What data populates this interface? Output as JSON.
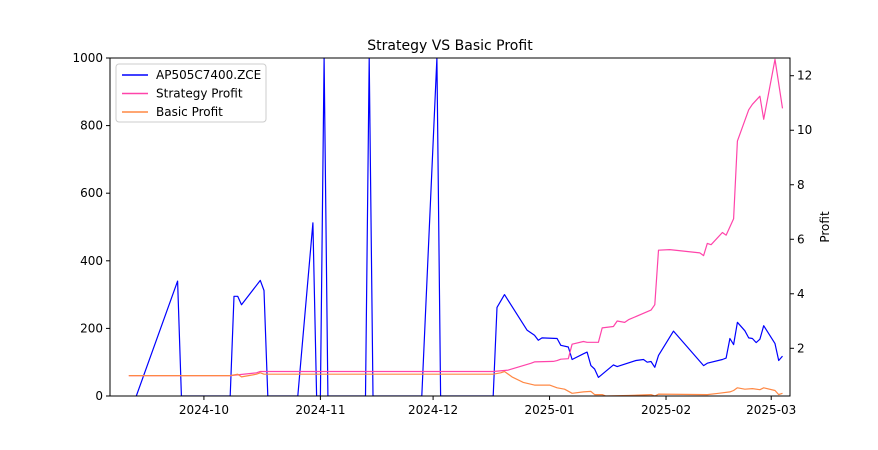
{
  "chart_data": {
    "type": "line",
    "title": "Strategy VS Basic Profit",
    "xlabel": "",
    "ylabel_left": "",
    "ylabel_right": "Profit",
    "x_ticks": [
      "2024-10",
      "2024-11",
      "2024-12",
      "2025-01",
      "2025-02",
      "2025-03"
    ],
    "y_left_ticks": [
      "0",
      "200",
      "400",
      "600",
      "800",
      "1000"
    ],
    "y_right_ticks": [
      "2",
      "4",
      "6",
      "8",
      "10",
      "12"
    ],
    "y_left_lim": [
      0,
      1000
    ],
    "y_right_lim": [
      0.25,
      12.65
    ],
    "x_lim": [
      "2024-09-06",
      "2025-03-06"
    ],
    "legend_position": "upper-left",
    "grid": false,
    "series": [
      {
        "name": "AP505C7400.ZCE",
        "axis": "left",
        "color": "#0000ff",
        "points": [
          [
            "2024-09-13",
            0
          ],
          [
            "2024-09-24",
            340
          ],
          [
            "2024-09-25",
            0
          ],
          [
            "2024-10-08",
            0
          ],
          [
            "2024-10-09",
            295
          ],
          [
            "2024-10-10",
            295
          ],
          [
            "2024-10-11",
            270
          ],
          [
            "2024-10-16",
            342
          ],
          [
            "2024-10-17",
            312
          ],
          [
            "2024-10-18",
            0
          ],
          [
            "2024-10-26",
            0
          ],
          [
            "2024-10-30",
            512
          ],
          [
            "2024-10-31",
            0
          ],
          [
            "2024-11-01",
            0
          ],
          [
            "2024-11-02",
            1000
          ],
          [
            "2024-11-03",
            0
          ],
          [
            "2024-11-13",
            0
          ],
          [
            "2024-11-14",
            1000
          ],
          [
            "2024-11-15",
            0
          ],
          [
            "2024-11-28",
            0
          ],
          [
            "2024-12-02",
            1000
          ],
          [
            "2024-12-03",
            0
          ],
          [
            "2024-12-17",
            0
          ],
          [
            "2024-12-18",
            262
          ],
          [
            "2024-12-20",
            300
          ],
          [
            "2024-12-26",
            195
          ],
          [
            "2024-12-28",
            180
          ],
          [
            "2024-12-29",
            165
          ],
          [
            "2024-12-30",
            172
          ],
          [
            "2025-01-03",
            170
          ],
          [
            "2025-01-04",
            150
          ],
          [
            "2025-01-06",
            145
          ],
          [
            "2025-01-07",
            108
          ],
          [
            "2025-01-10",
            125
          ],
          [
            "2025-01-11",
            130
          ],
          [
            "2025-01-12",
            90
          ],
          [
            "2025-01-13",
            80
          ],
          [
            "2025-01-14",
            55
          ],
          [
            "2025-01-18",
            92
          ],
          [
            "2025-01-19",
            87
          ],
          [
            "2025-01-24",
            105
          ],
          [
            "2025-01-26",
            108
          ],
          [
            "2025-01-27",
            100
          ],
          [
            "2025-01-28",
            102
          ],
          [
            "2025-01-29",
            85
          ],
          [
            "2025-01-30",
            120
          ],
          [
            "2025-02-03",
            192
          ],
          [
            "2025-02-11",
            90
          ],
          [
            "2025-02-12",
            97
          ],
          [
            "2025-02-16",
            108
          ],
          [
            "2025-02-17",
            112
          ],
          [
            "2025-02-18",
            170
          ],
          [
            "2025-02-19",
            152
          ],
          [
            "2025-02-20",
            218
          ],
          [
            "2025-02-22",
            193
          ],
          [
            "2025-02-23",
            172
          ],
          [
            "2025-02-24",
            170
          ],
          [
            "2025-02-25",
            158
          ],
          [
            "2025-02-26",
            168
          ],
          [
            "2025-02-27",
            208
          ],
          [
            "2025-03-02",
            155
          ],
          [
            "2025-03-03",
            105
          ],
          [
            "2025-03-04",
            118
          ]
        ]
      },
      {
        "name": "Strategy Profit",
        "axis": "right",
        "color": "#ff44aa",
        "points": [
          [
            "2024-09-11",
            1.0
          ],
          [
            "2024-10-08",
            1.0
          ],
          [
            "2024-10-15",
            1.1
          ],
          [
            "2024-10-16",
            1.15
          ],
          [
            "2024-12-17",
            1.15
          ],
          [
            "2024-12-21",
            1.2
          ],
          [
            "2024-12-27",
            1.45
          ],
          [
            "2024-12-28",
            1.5
          ],
          [
            "2025-01-02",
            1.52
          ],
          [
            "2025-01-03",
            1.55
          ],
          [
            "2025-01-04",
            1.6
          ],
          [
            "2025-01-06",
            1.62
          ],
          [
            "2025-01-07",
            2.15
          ],
          [
            "2025-01-10",
            2.25
          ],
          [
            "2025-01-11",
            2.22
          ],
          [
            "2025-01-14",
            2.22
          ],
          [
            "2025-01-15",
            2.75
          ],
          [
            "2025-01-18",
            2.8
          ],
          [
            "2025-01-19",
            3.0
          ],
          [
            "2025-01-21",
            2.95
          ],
          [
            "2025-01-22",
            3.05
          ],
          [
            "2025-01-28",
            3.4
          ],
          [
            "2025-01-29",
            3.6
          ],
          [
            "2025-01-30",
            5.6
          ],
          [
            "2025-02-02",
            5.62
          ],
          [
            "2025-02-10",
            5.5
          ],
          [
            "2025-02-11",
            5.4
          ],
          [
            "2025-02-12",
            5.85
          ],
          [
            "2025-02-13",
            5.8
          ],
          [
            "2025-02-16",
            6.25
          ],
          [
            "2025-02-17",
            6.15
          ],
          [
            "2025-02-19",
            6.75
          ],
          [
            "2025-02-20",
            9.6
          ],
          [
            "2025-02-23",
            10.75
          ],
          [
            "2025-02-24",
            10.95
          ],
          [
            "2025-02-26",
            11.25
          ],
          [
            "2025-02-27",
            10.4
          ],
          [
            "2025-03-02",
            12.6
          ],
          [
            "2025-03-04",
            10.8
          ]
        ]
      },
      {
        "name": "Basic Profit",
        "axis": "right",
        "color": "#ff8844",
        "points": [
          [
            "2024-09-11",
            1.0
          ],
          [
            "2024-10-08",
            1.0
          ],
          [
            "2024-10-10",
            1.05
          ],
          [
            "2024-10-11",
            0.95
          ],
          [
            "2024-10-15",
            1.05
          ],
          [
            "2024-10-16",
            1.1
          ],
          [
            "2024-10-17",
            1.05
          ],
          [
            "2024-12-17",
            1.05
          ],
          [
            "2024-12-19",
            1.1
          ],
          [
            "2024-12-20",
            1.15
          ],
          [
            "2024-12-22",
            0.95
          ],
          [
            "2024-12-25",
            0.75
          ],
          [
            "2024-12-28",
            0.65
          ],
          [
            "2025-01-01",
            0.65
          ],
          [
            "2025-01-03",
            0.55
          ],
          [
            "2025-01-05",
            0.5
          ],
          [
            "2025-01-07",
            0.35
          ],
          [
            "2025-01-10",
            0.4
          ],
          [
            "2025-01-12",
            0.42
          ],
          [
            "2025-01-13",
            0.3
          ],
          [
            "2025-01-15",
            0.3
          ],
          [
            "2025-01-16",
            0.25
          ],
          [
            "2025-01-22",
            0.27
          ],
          [
            "2025-01-28",
            0.3
          ],
          [
            "2025-01-29",
            0.25
          ],
          [
            "2025-01-30",
            0.32
          ],
          [
            "2025-02-12",
            0.3
          ],
          [
            "2025-02-15",
            0.35
          ],
          [
            "2025-02-18",
            0.4
          ],
          [
            "2025-02-19",
            0.45
          ],
          [
            "2025-02-20",
            0.55
          ],
          [
            "2025-02-22",
            0.5
          ],
          [
            "2025-02-24",
            0.52
          ],
          [
            "2025-02-26",
            0.48
          ],
          [
            "2025-02-27",
            0.55
          ],
          [
            "2025-03-02",
            0.45
          ],
          [
            "2025-03-03",
            0.3
          ],
          [
            "2025-03-04",
            0.35
          ]
        ]
      }
    ]
  }
}
